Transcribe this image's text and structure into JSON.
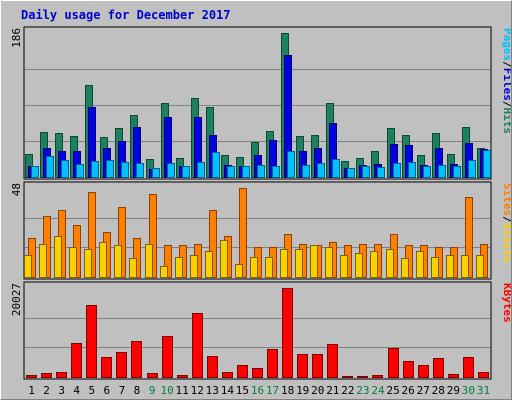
{
  "chart_data": {
    "type": "bar",
    "title": "Daily usage for December 2017",
    "categories": [
      "1",
      "2",
      "3",
      "4",
      "5",
      "6",
      "7",
      "8",
      "9",
      "10",
      "11",
      "12",
      "13",
      "14",
      "15",
      "16",
      "17",
      "18",
      "19",
      "20",
      "21",
      "22",
      "23",
      "24",
      "25",
      "26",
      "27",
      "28",
      "29",
      "30",
      "31"
    ],
    "weekend_days": [
      "9",
      "10",
      "16",
      "17",
      "23",
      "24",
      "30",
      "31"
    ],
    "panels": [
      {
        "name": "hits_panel",
        "ymax_label": "186",
        "ymax": 186,
        "legend": [
          {
            "text": "Pages",
            "color": "#00c0ff"
          },
          {
            "text": "/",
            "color": "#000000"
          },
          {
            "text": "Files",
            "color": "#0000d0"
          },
          {
            "text": "/",
            "color": "#000000"
          },
          {
            "text": "Hits",
            "color": "#1e8060"
          }
        ],
        "series": [
          {
            "name": "Hits",
            "color": "#1e8060",
            "values": [
              30,
              58,
              57,
              53,
              119,
              52,
              63,
              80,
              23,
              95,
              25,
              102,
              90,
              28,
              26,
              45,
              60,
              186,
              53,
              54,
              96,
              21,
              24,
              34,
              63,
              54,
              28,
              57,
              30,
              65,
              38
            ]
          },
          {
            "name": "Files",
            "color": "#0000e0",
            "values": [
              14,
              37,
              33,
              34,
              91,
              37,
              47,
              65,
              10,
              78,
              14,
              78,
              54,
              15,
              14,
              28,
              48,
              157,
              34,
              37,
              70,
              12,
              16,
              17,
              42,
              41,
              16,
              38,
              17,
              44,
              36
            ]
          },
          {
            "name": "Pages",
            "color": "#00c0ff",
            "values": [
              14,
              27,
              22,
              17,
              21,
              22,
              20,
              18,
              12,
              18,
              14,
              20,
              32,
              14,
              14,
              16,
              14,
              34,
              16,
              18,
              23,
              12,
              14,
              13,
              18,
              20,
              14,
              16,
              14,
              22,
              35
            ]
          }
        ]
      },
      {
        "name": "visits_panel",
        "ymax_label": "48",
        "ymax": 48,
        "legend": [
          {
            "text": "Sites",
            "color": "#ff8000"
          },
          {
            "text": "/",
            "color": "#000000"
          },
          {
            "text": "Visits",
            "color": "#ffd000"
          }
        ],
        "series": [
          {
            "name": "Visits",
            "color": "#ff8000",
            "values": [
              21,
              33,
              36,
              28,
              46,
              24,
              38,
              21,
              45,
              17,
              17,
              18,
              36,
              22,
              48,
              16,
              16,
              23,
              18,
              17,
              19,
              17,
              18,
              18,
              23,
              17,
              17,
              16,
              16,
              43,
              18
            ]
          },
          {
            "name": "Sites",
            "color": "#ffd000",
            "values": [
              12,
              18,
              22,
              16,
              15,
              19,
              17,
              10,
              18,
              6,
              11,
              12,
              14,
              20,
              7,
              11,
              11,
              15,
              15,
              17,
              16,
              12,
              13,
              14,
              15,
              10,
              14,
              11,
              12,
              12,
              12
            ]
          }
        ]
      },
      {
        "name": "kbytes_panel",
        "ymax_label": "20027",
        "ymax": 20027,
        "legend": [
          {
            "text": "KBytes",
            "color": "#ff0000"
          }
        ],
        "series": [
          {
            "name": "KBytes",
            "color": "#ff0000",
            "values": [
              520,
              952,
              1014,
              7613,
              16160,
              4426,
              5567,
              8157,
              894,
              9138,
              396,
              14293,
              4801,
              1181,
              2697,
              1939,
              6409,
              20027,
              5284,
              5071,
              7390,
              220,
              162,
              520,
              6523,
              3600,
              2700,
              4200,
              700,
              4400,
              1200
            ]
          }
        ]
      }
    ]
  }
}
